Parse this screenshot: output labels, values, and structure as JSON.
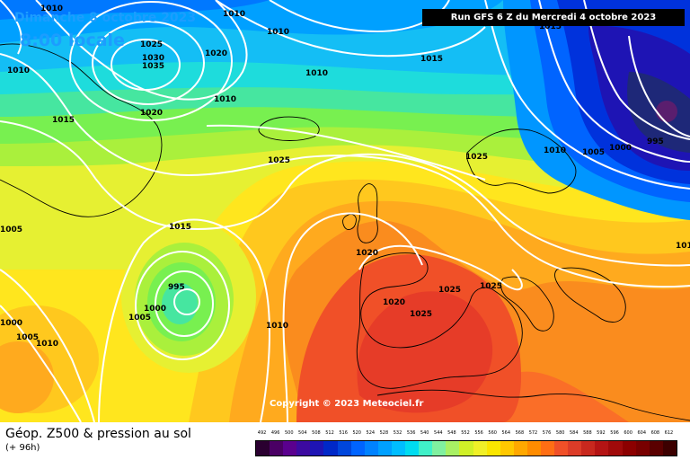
{
  "header": {
    "date": "Dimanche 8 octobre 2023",
    "local_time": "8:00 locale",
    "run_info": "Run GFS 6 Z du Mercredi 4 octobre 2023"
  },
  "footer": {
    "title": "Géop. Z500 & pression au sol",
    "lead_time": "(+ 96h)",
    "copyright": "Copyright © 2023 Meteociel.fr"
  },
  "legend": {
    "values": [
      "492",
      "496",
      "500",
      "504",
      "508",
      "512",
      "516",
      "520",
      "524",
      "528",
      "532",
      "536",
      "540",
      "544",
      "548",
      "552",
      "556",
      "560",
      "564",
      "568",
      "572",
      "576",
      "580",
      "584",
      "588",
      "592",
      "596",
      "600",
      "604",
      "608",
      "612"
    ],
    "colors": [
      "#2a0030",
      "#4a0064",
      "#5a008e",
      "#3c0aa0",
      "#1e14b4",
      "#0028c8",
      "#0046dc",
      "#0064ff",
      "#0082ff",
      "#00a0ff",
      "#00beff",
      "#00dcf0",
      "#40f0c8",
      "#80f0a0",
      "#a8f064",
      "#d0f028",
      "#f0f028",
      "#fae600",
      "#ffc800",
      "#ffa800",
      "#ff8c00",
      "#ff6e14",
      "#f05028",
      "#dc3c28",
      "#c8281e",
      "#b41414",
      "#a00a0a",
      "#8c0000",
      "#780000",
      "#5a0000",
      "#3c0000"
    ]
  },
  "isobar_labels": [
    "1010",
    "1010",
    "1010",
    "1025",
    "1030",
    "1035",
    "1020",
    "1010",
    "1010",
    "1015",
    "1015",
    "1010",
    "1020",
    "1015",
    "1025",
    "1025",
    "1010",
    "1005",
    "1000",
    "995",
    "1015",
    "1020",
    "1025",
    "1025",
    "1020",
    "1025",
    "995",
    "1000",
    "1005",
    "1010",
    "1000",
    "1005",
    "1010",
    "1005",
    "1010"
  ]
}
